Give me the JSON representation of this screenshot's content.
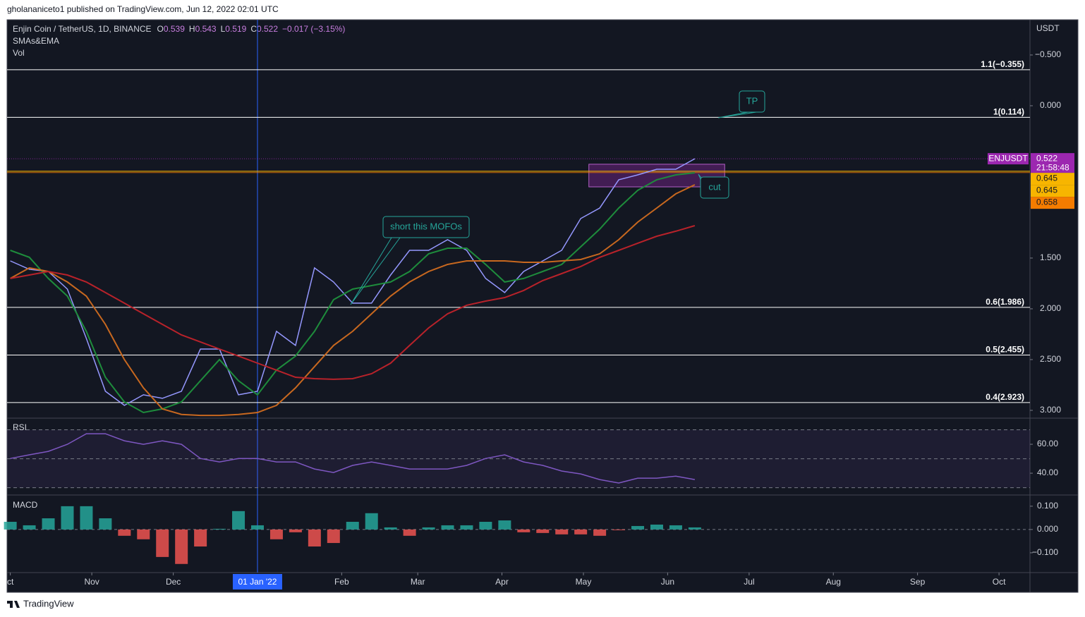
{
  "header": {
    "publisher": "gholananiceto1 published on TradingView.com, Jun 12, 2022 02:01 UTC",
    "footer": "TradingView"
  },
  "chart_data": {
    "type": "line",
    "symbol": "Enjin Coin / TetherUS, 1D, BINANCE",
    "ohlc": [
      {
        "key": "O",
        "text": "0.539"
      },
      {
        "key": "H",
        "text": "0.543"
      },
      {
        "key": "L",
        "text": "0.519"
      },
      {
        "key": "C",
        "text": "0.522"
      }
    ],
    "change": "−0.017 (−3.15%)",
    "indicators": [
      "SMAs&EMA",
      "Vol"
    ],
    "currency": "USDT",
    "x": [
      -91,
      -84,
      -77,
      -70,
      -63,
      -56,
      -49,
      -42,
      -35,
      -28,
      -21,
      -14,
      -7,
      0,
      7,
      14,
      21,
      28,
      35,
      42,
      49,
      56,
      63,
      70,
      77,
      84,
      91,
      98,
      105,
      112,
      119,
      126,
      133,
      140,
      147,
      154,
      161
    ],
    "xlim": [
      -92.2,
      284.4
    ],
    "xticks": [
      {
        "value": -91,
        "label": "ct"
      },
      {
        "value": -61,
        "label": "Nov"
      },
      {
        "value": -31,
        "label": "Dec"
      },
      {
        "value": 31,
        "label": "Feb"
      },
      {
        "value": 59,
        "label": "Mar"
      },
      {
        "value": 90,
        "label": "Apr"
      },
      {
        "value": 120,
        "label": "May"
      },
      {
        "value": 151,
        "label": "Jun"
      },
      {
        "value": 181,
        "label": "Jul"
      },
      {
        "value": 212,
        "label": "Aug"
      },
      {
        "value": 243,
        "label": "Sep"
      },
      {
        "value": 273,
        "label": "Oct"
      }
    ],
    "cursor": {
      "value": 0,
      "label": "01 Jan '22"
    },
    "ylim": [
      -0.847,
      3.056
    ],
    "inverted": true,
    "yticks": [
      {
        "value": -0.5,
        "label": "−0.500"
      },
      {
        "value": 0,
        "label": "0.000"
      },
      {
        "value": 1.5,
        "label": "1.500"
      },
      {
        "value": 2,
        "label": "2.000"
      },
      {
        "value": 2.5,
        "label": "2.500"
      },
      {
        "value": 3,
        "label": "3.000"
      }
    ],
    "series": [
      {
        "color": "#9598ff",
        "values": [
          1.528,
          1.611,
          1.632,
          1.806,
          2.292,
          2.812,
          2.951,
          2.847,
          2.882,
          2.812,
          2.396,
          2.396,
          2.847,
          2.812,
          2.222,
          2.361,
          1.597,
          1.736,
          1.944,
          1.944,
          1.667,
          1.424,
          1.424,
          1.319,
          1.424,
          1.701,
          1.84,
          1.632,
          1.528,
          1.424,
          1.111,
          1.007,
          0.729,
          0.681,
          0.625,
          0.625,
          0.522
        ]
      },
      {
        "color": "#1e8c3c",
        "values": [
          1.424,
          1.493,
          1.701,
          1.875,
          2.222,
          2.674,
          2.917,
          3.021,
          2.986,
          2.917,
          2.708,
          2.5,
          2.708,
          2.847,
          2.604,
          2.465,
          2.222,
          1.91,
          1.806,
          1.771,
          1.736,
          1.632,
          1.458,
          1.403,
          1.403,
          1.563,
          1.736,
          1.701,
          1.632,
          1.563,
          1.389,
          1.215,
          1.007,
          0.833,
          0.729,
          0.681,
          0.66
        ]
      },
      {
        "color": "#c8681f",
        "values": [
          1.701,
          1.597,
          1.632,
          1.736,
          1.875,
          2.153,
          2.5,
          2.778,
          2.986,
          3.04,
          3.05,
          3.05,
          3.04,
          3.021,
          2.951,
          2.778,
          2.569,
          2.361,
          2.222,
          2.049,
          1.875,
          1.736,
          1.632,
          1.563,
          1.528,
          1.528,
          1.528,
          1.542,
          1.542,
          1.528,
          1.514,
          1.458,
          1.319,
          1.146,
          1.007,
          0.868,
          0.778
        ]
      },
      {
        "color": "#b8222a",
        "values": [
          1.701,
          1.667,
          1.632,
          1.667,
          1.736,
          1.84,
          1.944,
          2.049,
          2.153,
          2.257,
          2.326,
          2.396,
          2.465,
          2.535,
          2.604,
          2.674,
          2.688,
          2.694,
          2.688,
          2.639,
          2.535,
          2.361,
          2.188,
          2.049,
          1.965,
          1.924,
          1.889,
          1.819,
          1.722,
          1.653,
          1.583,
          1.493,
          1.424,
          1.354,
          1.285,
          1.236,
          1.181
        ]
      }
    ],
    "fib_levels": [
      {
        "value": -0.355,
        "label": "1.1(−0.355)"
      },
      {
        "value": 0.114,
        "label": "1(0.114)"
      },
      {
        "value": 1.986,
        "label": "0.6(1.986)"
      },
      {
        "value": 2.455,
        "label": "0.5(2.455)"
      },
      {
        "value": 2.923,
        "label": "0.4(2.923)"
      }
    ],
    "price_tags": [
      {
        "name": "ENJUSDT",
        "value": 0.522,
        "label": "0.522",
        "countdown": "21:58:48",
        "color": "#9c27b0"
      },
      {
        "value": 0.645,
        "label": "0.645",
        "color": "#f7b500"
      },
      {
        "value": 0.645,
        "label": "0.645",
        "color": "#f7b500"
      },
      {
        "value": 0.658,
        "label": "0.658",
        "color": "#f57c00"
      }
    ],
    "range_box": {
      "x": [
        122,
        172
      ],
      "y": [
        0.576,
        0.799
      ]
    },
    "annotations": [
      "TP",
      "cut",
      "short this MOFOs"
    ],
    "rsi": {
      "label": "RSI",
      "color": "#7e57c2",
      "ylim": [
        25.9,
        76.6
      ],
      "yticks": [
        {
          "value": 40,
          "label": "40.00"
        },
        {
          "value": 60,
          "label": "60.00"
        }
      ],
      "levels": [
        70,
        50,
        30
      ],
      "values": [
        50.2,
        52.7,
        55.1,
        60,
        67.3,
        67.3,
        62.4,
        60,
        62.4,
        60,
        50.2,
        47.8,
        50.2,
        50.2,
        47.8,
        47.8,
        42.9,
        40.5,
        45.4,
        47.8,
        45.4,
        42.9,
        42.9,
        42.9,
        45.4,
        50.2,
        52.7,
        47.8,
        45.4,
        41.5,
        39.5,
        35.6,
        33.2,
        36.6,
        36.6,
        38,
        35.6
      ]
    },
    "macd": {
      "label": "MACD",
      "up_color": "#26a69a",
      "down_color": "#ef5350",
      "ylim": [
        -0.185,
        0.142
      ],
      "yticks": [
        {
          "value": 0.1,
          "label": "0.100"
        },
        {
          "value": 0,
          "label": "0.000"
        },
        {
          "value": -0.1,
          "label": "−0.100"
        }
      ],
      "values": [
        0.033,
        0.018,
        0.048,
        0.1,
        0.1,
        0.048,
        -0.027,
        -0.042,
        -0.118,
        -0.148,
        -0.073,
        0.003,
        0.079,
        0.018,
        -0.042,
        -0.012,
        -0.073,
        -0.058,
        0.033,
        0.07,
        0.009,
        -0.027,
        0.009,
        0.018,
        0.018,
        0.033,
        0.039,
        -0.012,
        -0.015,
        -0.021,
        -0.021,
        -0.027,
        -0.003,
        0.015,
        0.021,
        0.018,
        0.009
      ]
    }
  }
}
